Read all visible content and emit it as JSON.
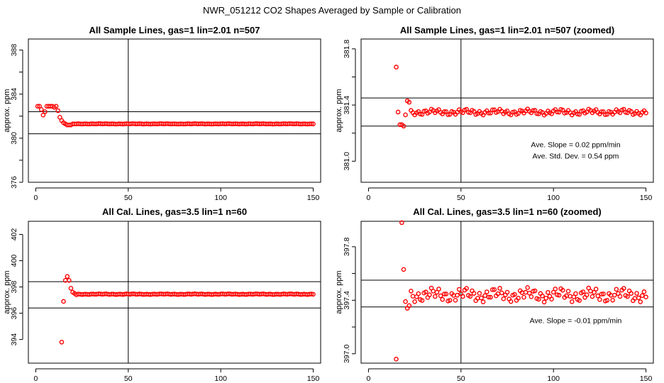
{
  "figure_title": "NWR_051212  CO2 Shapes Averaged by Sample or Calibration",
  "chart_data": [
    {
      "id": "p1",
      "type": "scatter",
      "title": "All Sample Lines, gas=1 lin=2.01 n=507",
      "ylabel": "approx. ppm",
      "xlim": [
        -4,
        154
      ],
      "ylim": [
        376,
        389
      ],
      "xticks": [
        0,
        50,
        100,
        150
      ],
      "yticks": [
        376,
        378,
        380,
        382,
        384,
        386,
        388
      ],
      "ytick_labels": [
        "376",
        "",
        "380",
        "",
        "384",
        "",
        "388"
      ],
      "vline": 50,
      "hlines": [
        380.4,
        382.4
      ],
      "annotations": [],
      "x": [
        1,
        2,
        3,
        4,
        5,
        6,
        7,
        8,
        9,
        10,
        11,
        12,
        13,
        14,
        15,
        16,
        17,
        18,
        19,
        20
      ],
      "y": [
        382.9,
        382.9,
        382.6,
        382.1,
        382.4,
        382.9,
        382.9,
        382.9,
        382.9,
        382.8,
        382.9,
        382.5,
        381.9,
        381.6,
        381.4,
        381.3,
        381.2,
        381.2,
        381.2,
        381.3
      ],
      "x2": [
        21,
        150
      ],
      "y2_level": 381.3,
      "y2_amp": 0.02
    },
    {
      "id": "p2",
      "type": "scatter",
      "title": "All Sample Lines, gas=1 lin=2.01 n=507 (zoomed)",
      "ylabel": "approx. ppm",
      "xlim": [
        -4,
        154
      ],
      "ylim": [
        380.85,
        381.87
      ],
      "xticks": [
        0,
        50,
        100,
        150
      ],
      "yticks": [
        381.0,
        381.2,
        381.4,
        381.6,
        381.8
      ],
      "ytick_labels": [
        "381.0",
        "",
        "381.4",
        "",
        "381.8"
      ],
      "vline": 50,
      "hlines": [
        381.25,
        381.45
      ],
      "annotations": [
        {
          "text": "Ave. Slope =  0.02  ppm/min",
          "x": 112,
          "y": 381.1
        },
        {
          "text": "Ave. Std. Dev. =  0.54  ppm",
          "x": 112,
          "y": 381.02
        }
      ],
      "x": [
        15,
        16,
        17,
        18,
        19,
        20,
        21,
        22
      ],
      "y": [
        381.67,
        381.35,
        381.26,
        381.26,
        381.25,
        381.33,
        381.43,
        381.42
      ],
      "x2": [
        23,
        150
      ],
      "y2_level": 381.35,
      "y2_amp": 0.022
    },
    {
      "id": "p3",
      "type": "scatter",
      "title": "All Cal. Lines, gas=3.5 lin=1 n=60",
      "ylabel": "approx. ppm",
      "xlim": [
        -4,
        154
      ],
      "ylim": [
        392.2,
        403.0
      ],
      "xticks": [
        0,
        50,
        100,
        150
      ],
      "yticks": [
        394,
        396,
        398,
        400,
        402
      ],
      "ytick_labels": [
        "394",
        "396",
        "398",
        "400",
        "402"
      ],
      "vline": 50,
      "hlines": [
        396.4,
        398.4
      ],
      "annotations": [],
      "x": [
        14,
        15,
        16,
        17,
        18,
        19,
        20,
        21,
        22
      ],
      "y": [
        393.8,
        396.9,
        398.5,
        398.8,
        398.5,
        397.9,
        397.6,
        397.5,
        397.4
      ],
      "x2": [
        23,
        150
      ],
      "y2_level": 397.45,
      "y2_amp": 0.03
    },
    {
      "id": "p4",
      "type": "scatter",
      "title": "All Cal. Lines, gas=3.5 lin=1 n=60 (zoomed)",
      "ylabel": "approx. ppm",
      "xlim": [
        -4,
        154
      ],
      "ylim": [
        396.93,
        397.99
      ],
      "xticks": [
        0,
        50,
        100,
        150
      ],
      "yticks": [
        397.0,
        397.2,
        397.4,
        397.6,
        397.8
      ],
      "ytick_labels": [
        "397.0",
        "",
        "397.4",
        "",
        "397.8"
      ],
      "vline": 50,
      "hlines": [
        397.35,
        397.55
      ],
      "annotations": [
        {
          "text": "Ave. Slope =  -0.01  ppm/min",
          "x": 112,
          "y": 397.23
        }
      ],
      "x": [
        15,
        18,
        19,
        20,
        21,
        22
      ],
      "y": [
        396.96,
        397.98,
        397.63,
        397.39,
        397.34,
        397.36
      ],
      "x2": [
        23,
        150
      ],
      "y2_level": 397.44,
      "y2_amp": 0.055
    }
  ]
}
